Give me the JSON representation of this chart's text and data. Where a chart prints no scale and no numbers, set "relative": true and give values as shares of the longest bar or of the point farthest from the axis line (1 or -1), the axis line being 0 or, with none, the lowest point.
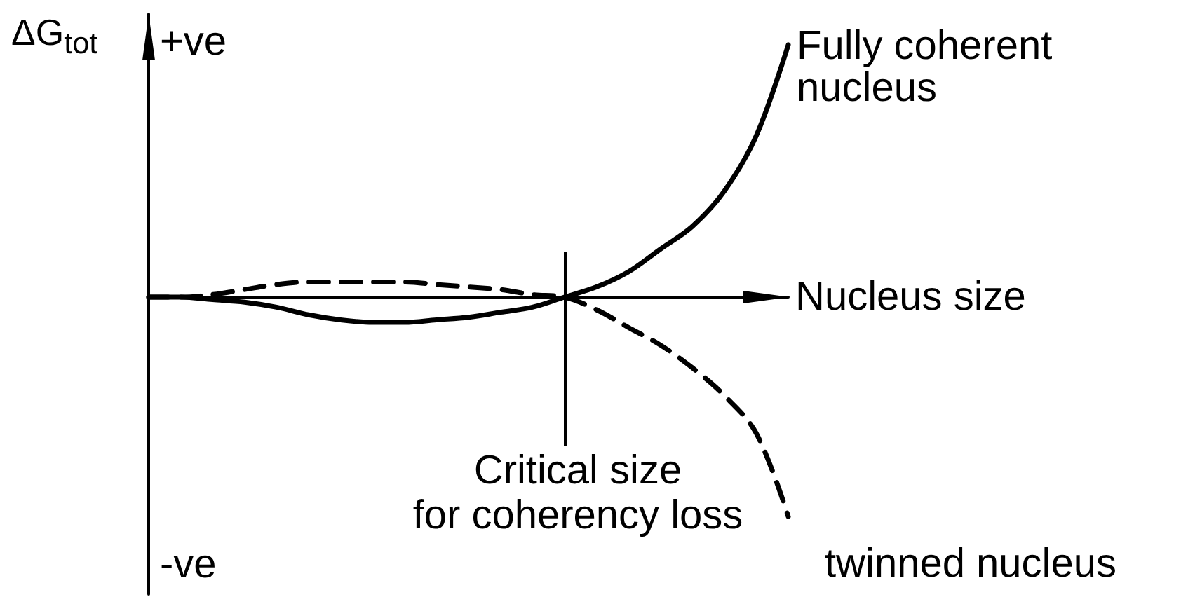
{
  "chart_data": {
    "type": "line",
    "relative": true,
    "ylabel": "ΔG$_{tot}$",
    "xlabel": "Nucleus size",
    "categories": [
      null,
      null,
      null,
      null,
      null,
      null,
      null,
      null,
      null,
      null,
      null,
      null,
      null,
      null,
      null,
      null,
      null,
      null,
      null,
      null,
      null
    ],
    "series": [
      {
        "name": "Fully coherent nucleus",
        "color": "#000000",
        "line_style": "solid",
        "values": [
          0,
          0,
          -0.01,
          -0.02,
          -0.04,
          -0.07,
          -0.09,
          -0.1,
          -0.1,
          -0.09,
          -0.08,
          -0.06,
          -0.04,
          0,
          0.04,
          0.1,
          0.19,
          0.28,
          0.42,
          0.64,
          1
        ]
      },
      {
        "name": "twinned nucleus",
        "color": "#000000",
        "line_style": "dashed",
        "values": [
          0,
          0,
          0.01,
          0.03,
          0.05,
          0.06,
          0.06,
          0.06,
          0.06,
          0.05,
          0.04,
          0.03,
          0.01,
          0,
          -0.05,
          -0.12,
          -0.19,
          -0.28,
          -0.39,
          -0.54,
          -0.87
        ]
      }
    ],
    "annotations": [
      "+ve",
      "-ve",
      "Critical size\nfor coherency loss"
    ]
  }
}
